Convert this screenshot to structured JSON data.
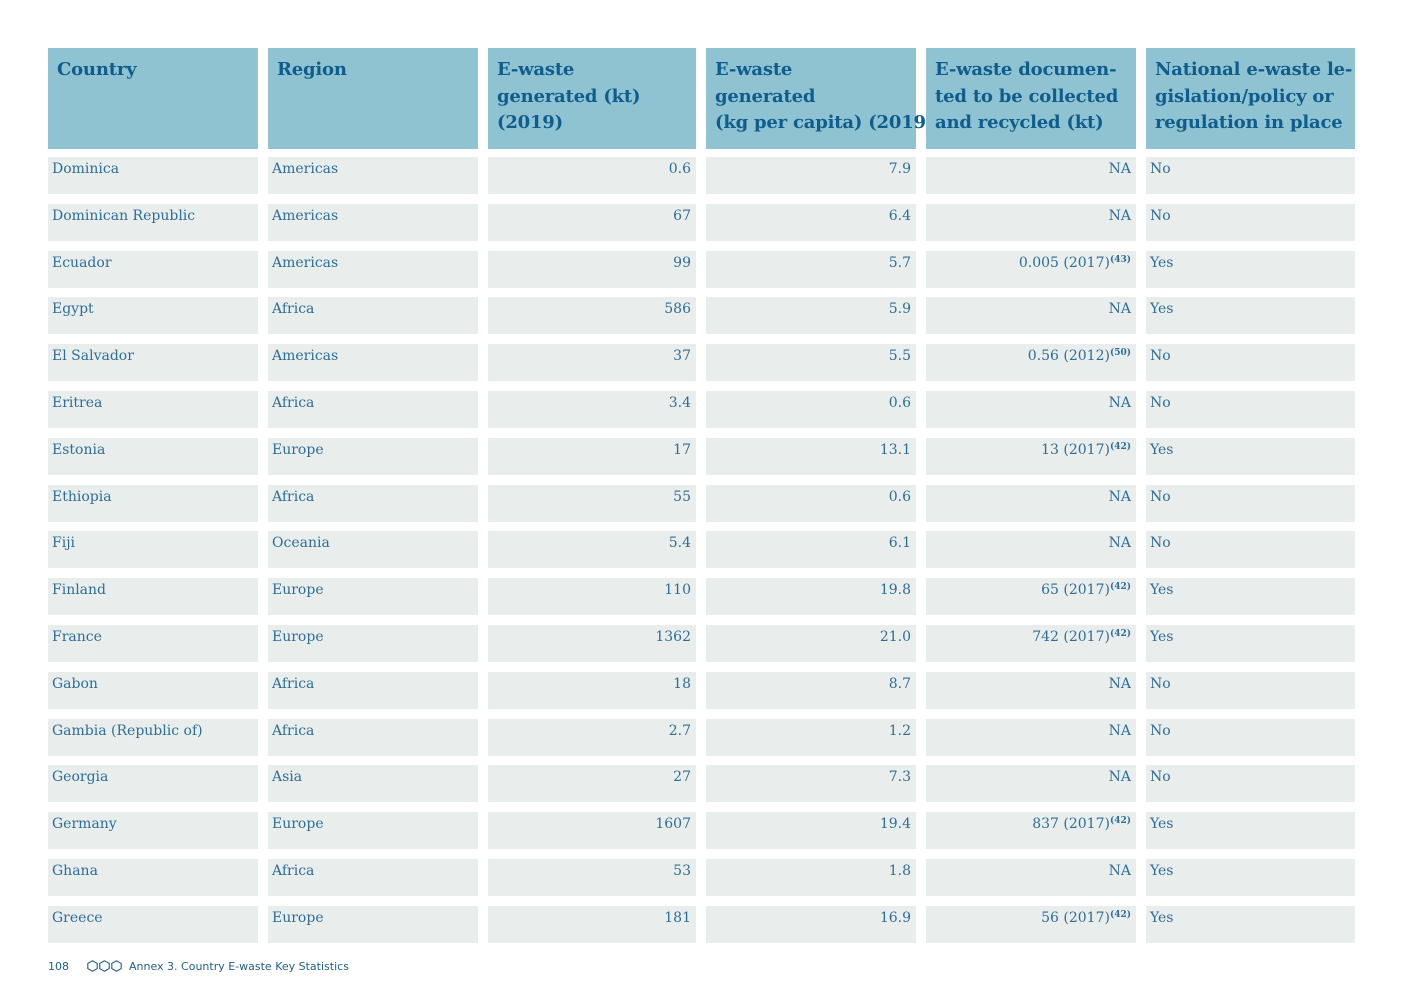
{
  "table": {
    "headers": [
      [
        "Country"
      ],
      [
        "Region"
      ],
      [
        "E-waste",
        "generated (kt)",
        "(2019)"
      ],
      [
        "E-waste",
        "generated",
        "(kg per capita) (2019)"
      ],
      [
        "E-waste documen-",
        "ted to be collected",
        "and recycled (kt)"
      ],
      [
        "National e-waste le-",
        "gislation/policy or",
        "regulation in place"
      ]
    ],
    "rows": [
      {
        "country": "Dominica",
        "region": "Americas",
        "generated_kt": "0.6",
        "per_capita": "7.9",
        "collected": "NA",
        "ref": "",
        "legislation": "No"
      },
      {
        "country": "Dominican Republic",
        "region": "Americas",
        "generated_kt": "67",
        "per_capita": "6.4",
        "collected": "NA",
        "ref": "",
        "legislation": "No"
      },
      {
        "country": "Ecuador",
        "region": "Americas",
        "generated_kt": "99",
        "per_capita": "5.7",
        "collected": "0.005 (2017)",
        "ref": "(43)",
        "legislation": "Yes"
      },
      {
        "country": "Egypt",
        "region": "Africa",
        "generated_kt": "586",
        "per_capita": "5.9",
        "collected": "NA",
        "ref": "",
        "legislation": "Yes"
      },
      {
        "country": "El Salvador",
        "region": "Americas",
        "generated_kt": "37",
        "per_capita": "5.5",
        "collected": "0.56 (2012)",
        "ref": "(50)",
        "legislation": "No"
      },
      {
        "country": "Eritrea",
        "region": "Africa",
        "generated_kt": "3.4",
        "per_capita": "0.6",
        "collected": "NA",
        "ref": "",
        "legislation": "No"
      },
      {
        "country": "Estonia",
        "region": "Europe",
        "generated_kt": "17",
        "per_capita": "13.1",
        "collected": "13 (2017)",
        "ref": "(42)",
        "legislation": "Yes"
      },
      {
        "country": "Ethiopia",
        "region": "Africa",
        "generated_kt": "55",
        "per_capita": "0.6",
        "collected": "NA",
        "ref": "",
        "legislation": "No"
      },
      {
        "country": "Fiji",
        "region": "Oceania",
        "generated_kt": "5.4",
        "per_capita": "6.1",
        "collected": "NA",
        "ref": "",
        "legislation": "No"
      },
      {
        "country": "Finland",
        "region": "Europe",
        "generated_kt": "110",
        "per_capita": "19.8",
        "collected": "65 (2017)",
        "ref": "(42)",
        "legislation": "Yes"
      },
      {
        "country": "France",
        "region": "Europe",
        "generated_kt": "1362",
        "per_capita": "21.0",
        "collected": "742 (2017)",
        "ref": "(42)",
        "legislation": "Yes"
      },
      {
        "country": "Gabon",
        "region": "Africa",
        "generated_kt": "18",
        "per_capita": "8.7",
        "collected": "NA",
        "ref": "",
        "legislation": "No"
      },
      {
        "country": "Gambia (Republic of)",
        "region": "Africa",
        "generated_kt": "2.7",
        "per_capita": "1.2",
        "collected": "NA",
        "ref": "",
        "legislation": "No"
      },
      {
        "country": "Georgia",
        "region": "Asia",
        "generated_kt": "27",
        "per_capita": "7.3",
        "collected": "NA",
        "ref": "",
        "legislation": "No"
      },
      {
        "country": "Germany",
        "region": "Europe",
        "generated_kt": "1607",
        "per_capita": "19.4",
        "collected": "837 (2017)",
        "ref": "(42)",
        "legislation": "Yes"
      },
      {
        "country": "Ghana",
        "region": "Africa",
        "generated_kt": "53",
        "per_capita": "1.8",
        "collected": "NA",
        "ref": "",
        "legislation": "Yes"
      },
      {
        "country": "Greece",
        "region": "Europe",
        "generated_kt": "181",
        "per_capita": "16.9",
        "collected": "56 (2017)",
        "ref": "(42)",
        "legislation": "Yes"
      }
    ]
  },
  "footer": {
    "page_number": "108",
    "icon": "three-hexagons-icon",
    "section_title": "Annex 3. Country E-waste Key Statistics"
  },
  "colors": {
    "header_bg": "#8fc3d2",
    "header_text": "#0f5d8c",
    "row_bg": "#e9eeec",
    "row_text": "#2d6e97"
  }
}
